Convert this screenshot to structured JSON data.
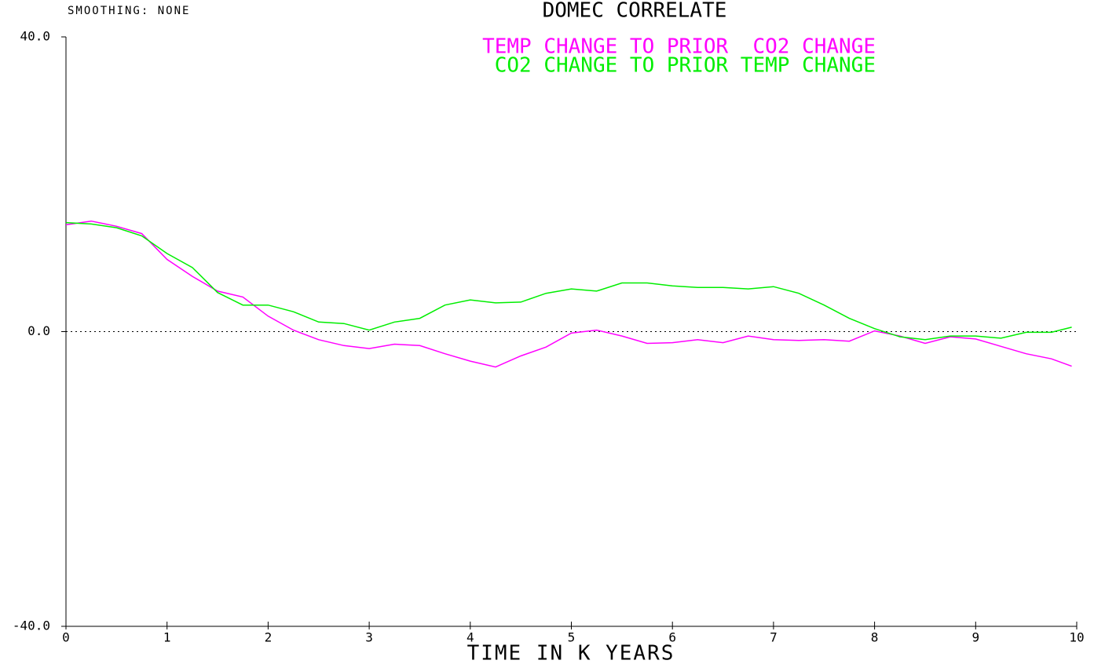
{
  "chart_data": {
    "type": "line",
    "title": "DOMEC CORRELATE",
    "subtitle": "SMOOTHING: NONE",
    "x_label": "TIME IN K YEARS",
    "x": [
      0,
      0.25,
      0.5,
      0.75,
      1,
      1.25,
      1.5,
      1.75,
      2,
      2.25,
      2.5,
      2.75,
      3,
      3.25,
      3.5,
      3.75,
      4,
      4.25,
      4.5,
      4.75,
      5,
      5.25,
      5.5,
      5.75,
      6,
      6.25,
      6.5,
      6.75,
      7,
      7.25,
      7.5,
      7.75,
      8,
      8.25,
      8.5,
      8.75,
      9,
      9.25,
      9.5,
      9.75,
      9.95
    ],
    "series": [
      {
        "name": "TEMP CHANGE TO PRIOR  CO2 CHANGE",
        "color": "#ff00ff",
        "values": [
          14.5,
          15.0,
          14.3,
          13.3,
          9.8,
          7.5,
          5.5,
          4.7,
          2.1,
          0.2,
          -1.1,
          -1.9,
          -2.3,
          -1.7,
          -1.9,
          -3.0,
          -4.0,
          -4.8,
          -3.3,
          -2.1,
          -0.2,
          0.2,
          -0.6,
          -1.6,
          -1.5,
          -1.1,
          -1.5,
          -0.6,
          -1.1,
          -1.2,
          -1.1,
          -1.3,
          0.1,
          -0.6,
          -1.6,
          -0.7,
          -1.0,
          -2.0,
          -3.0,
          -3.7,
          -4.7
        ]
      },
      {
        "name": "CO2 CHANGE TO PRIOR TEMP CHANGE",
        "color": "#00ee00",
        "values": [
          14.8,
          14.6,
          14.1,
          13.0,
          10.6,
          8.7,
          5.3,
          3.6,
          3.6,
          2.7,
          1.3,
          1.1,
          0.2,
          1.3,
          1.8,
          3.6,
          4.3,
          3.9,
          4.0,
          5.2,
          5.8,
          5.5,
          6.6,
          6.6,
          6.2,
          6.0,
          6.0,
          5.8,
          6.1,
          5.2,
          3.6,
          1.8,
          0.4,
          -0.7,
          -1.1,
          -0.6,
          -0.6,
          -0.9,
          -0.1,
          -0.1,
          0.6
        ]
      }
    ],
    "xlim": [
      0,
      10
    ],
    "xticks": [
      0,
      1,
      2,
      3,
      4,
      5,
      6,
      7,
      8,
      9,
      10
    ],
    "ylim": [
      -40,
      40
    ],
    "yticks": [
      {
        "value": -40,
        "label": "-40.0"
      },
      {
        "value": 0,
        "label": "0.0"
      },
      {
        "value": 40,
        "label": "40.0"
      }
    ],
    "zero_line": true
  }
}
